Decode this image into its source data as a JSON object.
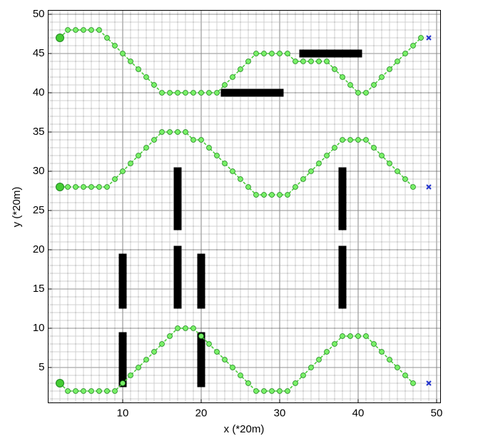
{
  "chart_data": {
    "type": "path-plan",
    "xlabel": "x (*20m)",
    "ylabel": "y (*20m)",
    "xlim": [
      0.5,
      50.5
    ],
    "ylim": [
      0.5,
      50.5
    ],
    "xticks": [
      10,
      20,
      30,
      40,
      50
    ],
    "yticks": [
      5,
      10,
      15,
      20,
      25,
      30,
      35,
      40,
      45,
      50
    ],
    "grid": true,
    "minor_grid": true,
    "series": [
      {
        "color": "#44cc33",
        "x": [
          2,
          3,
          4,
          5,
          6,
          7,
          8,
          9,
          10,
          11,
          12,
          13,
          14,
          15,
          16,
          17,
          18,
          19,
          20,
          21,
          22,
          23,
          24,
          25,
          26,
          27,
          28,
          29,
          30,
          31,
          32,
          33,
          34,
          35,
          36,
          37,
          38,
          39,
          40,
          41,
          42,
          43,
          44,
          45,
          46,
          47,
          48
        ],
        "values": [
          47,
          48,
          48,
          48,
          48,
          48,
          47,
          46,
          45,
          44,
          43,
          42,
          41,
          40,
          40,
          40,
          40,
          40,
          40,
          40,
          40,
          41,
          42,
          43,
          44,
          45,
          45,
          45,
          45,
          45,
          44,
          44,
          44,
          44,
          44,
          43,
          42,
          41,
          40,
          40,
          41,
          42,
          43,
          44,
          45,
          46,
          47
        ]
      },
      {
        "color": "#44cc33",
        "x": [
          2,
          3,
          4,
          5,
          6,
          7,
          8,
          9,
          10,
          11,
          12,
          13,
          14,
          15,
          16,
          17,
          18,
          19,
          20,
          21,
          22,
          23,
          24,
          25,
          26,
          27,
          28,
          29,
          30,
          31,
          32,
          33,
          34,
          35,
          36,
          37,
          38,
          39,
          40,
          41,
          42,
          43,
          44,
          45,
          46,
          47
        ],
        "values": [
          28,
          28,
          28,
          28,
          28,
          28,
          28,
          29,
          30,
          31,
          32,
          33,
          34,
          35,
          35,
          35,
          35,
          34,
          34,
          33,
          32,
          31,
          30,
          29,
          28,
          27,
          27,
          27,
          27,
          27,
          28,
          29,
          30,
          31,
          32,
          33,
          34,
          34,
          34,
          34,
          33,
          32,
          31,
          30,
          29,
          28
        ]
      },
      {
        "color": "#44cc33",
        "x": [
          2,
          3,
          4,
          5,
          6,
          7,
          8,
          9,
          10,
          11,
          12,
          13,
          14,
          15,
          16,
          17,
          18,
          19,
          20,
          21,
          22,
          23,
          24,
          25,
          26,
          27,
          28,
          29,
          30,
          31,
          32,
          33,
          34,
          35,
          36,
          37,
          38,
          39,
          40,
          41,
          42,
          43,
          44,
          45,
          46,
          47
        ],
        "values": [
          3,
          2,
          2,
          2,
          2,
          2,
          2,
          2,
          3,
          4,
          5,
          6,
          7,
          8,
          9,
          10,
          10,
          10,
          9,
          8,
          7,
          6,
          5,
          4,
          3,
          2,
          2,
          2,
          2,
          2,
          3,
          4,
          5,
          6,
          7,
          8,
          9,
          9,
          9,
          9,
          8,
          7,
          6,
          5,
          4,
          3
        ]
      }
    ],
    "starts": {
      "color": "#44cc33",
      "x": [
        2,
        2,
        2
      ],
      "y": [
        47,
        28,
        3
      ]
    },
    "goals": {
      "color": "#2233cc",
      "x": [
        49,
        49,
        49
      ],
      "y": [
        47,
        28,
        3
      ]
    },
    "obstacle_color": "#000000",
    "obstacles": [
      {
        "x": [
          32.5,
          40.5
        ],
        "y": [
          44.5,
          45.5
        ]
      },
      {
        "x": [
          22.5,
          30.5
        ],
        "y": [
          39.5,
          40.5
        ]
      },
      {
        "x": [
          16.5,
          17.5
        ],
        "y": [
          22.5,
          30.5
        ]
      },
      {
        "x": [
          37.5,
          38.5
        ],
        "y": [
          22.5,
          30.5
        ]
      },
      {
        "x": [
          9.5,
          10.5
        ],
        "y": [
          12.5,
          19.5
        ]
      },
      {
        "x": [
          16.5,
          17.5
        ],
        "y": [
          12.5,
          20.5
        ]
      },
      {
        "x": [
          19.5,
          20.5
        ],
        "y": [
          12.5,
          19.5
        ]
      },
      {
        "x": [
          37.5,
          38.5
        ],
        "y": [
          12.5,
          20.5
        ]
      },
      {
        "x": [
          9.5,
          10.5
        ],
        "y": [
          2.5,
          9.5
        ]
      },
      {
        "x": [
          19.5,
          20.5
        ],
        "y": [
          2.5,
          9.5
        ]
      }
    ]
  }
}
